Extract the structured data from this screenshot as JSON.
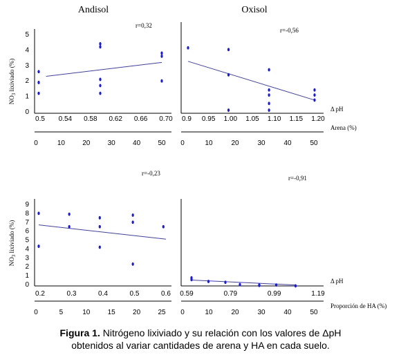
{
  "column_titles": [
    "Andisol",
    "Oxisol"
  ],
  "delta_ph_label": "Δ pH",
  "arena_label": "Arena (%)",
  "ha_label": "Proporción de HA (%)",
  "colors": {
    "points": "#1515ff",
    "trend": "#3a3ad0"
  },
  "caption": {
    "bold": "Figura 1.",
    "line1_rest": "Nitrógeno lixiviado y su relación con los valores de ΔpH",
    "line2": "obtenidos al variar cantidades de arena y HA en cada suelo."
  },
  "chart_data": [
    {
      "type": "scatter",
      "panel": "andisol-arena",
      "title": "Andisol",
      "r_label": "r=0,32",
      "ylabel": "NO3 lixiviado (%)",
      "xlabel": "Arena (%)",
      "ylim": [
        0,
        5
      ],
      "yticks": [
        "0",
        "1",
        "2",
        "3",
        "4",
        "5"
      ],
      "xlim_ph": [
        0.5,
        0.7
      ],
      "xticks_ph": [
        "0.5",
        "0.54",
        "0.58",
        "0.62",
        "0.66",
        "0.70"
      ],
      "xlim_arena": [
        0,
        50
      ],
      "xticks_arena": [
        "0",
        "10",
        "20",
        "30",
        "40",
        "50"
      ],
      "points": [
        {
          "x": 0,
          "y": 2.6
        },
        {
          "x": 0,
          "y": 1.9
        },
        {
          "x": 0,
          "y": 1.2
        },
        {
          "x": 25,
          "y": 4.4
        },
        {
          "x": 25,
          "y": 4.2
        },
        {
          "x": 25,
          "y": 2.1
        },
        {
          "x": 25,
          "y": 1.7
        },
        {
          "x": 25,
          "y": 1.2
        },
        {
          "x": 50,
          "y": 3.8
        },
        {
          "x": 50,
          "y": 3.6
        },
        {
          "x": 50,
          "y": 2.0
        }
      ],
      "trend": [
        {
          "x": 3,
          "y": 2.3
        },
        {
          "x": 50,
          "y": 3.2
        }
      ]
    },
    {
      "type": "scatter",
      "panel": "oxisol-arena",
      "title": "Oxisol",
      "r_label": "r=-0,56",
      "ylim": [
        0,
        5
      ],
      "xlim_ph": [
        0.88,
        1.2
      ],
      "xticks_ph": [
        "0.9",
        "0.95",
        "1.00",
        "1.05",
        "1.10",
        "1.15",
        "1.20"
      ],
      "xlim_arena": [
        0,
        50
      ],
      "xticks_arena": [
        "0",
        "10",
        "20",
        "30",
        "40",
        "50"
      ],
      "points": [
        {
          "x": 0,
          "y": 3.8
        },
        {
          "x": 16,
          "y": 3.7
        },
        {
          "x": 16,
          "y": 2.2
        },
        {
          "x": 16,
          "y": 0.1
        },
        {
          "x": 32,
          "y": 2.5
        },
        {
          "x": 32,
          "y": 1.3
        },
        {
          "x": 32,
          "y": 1.0
        },
        {
          "x": 32,
          "y": 0.5
        },
        {
          "x": 32,
          "y": 0.1
        },
        {
          "x": 50,
          "y": 1.3
        },
        {
          "x": 50,
          "y": 1.0
        },
        {
          "x": 50,
          "y": 0.7
        }
      ],
      "trend": [
        {
          "x": 0,
          "y": 3.0
        },
        {
          "x": 50,
          "y": 0.7
        }
      ]
    },
    {
      "type": "scatter",
      "panel": "andisol-ha",
      "r_label": "r=-0,23",
      "ylabel": "NO3 lixiviado (%)",
      "xlabel": "Proporción de HA (%)",
      "ylim": [
        0,
        9
      ],
      "yticks": [
        "0",
        "1",
        "2",
        "3",
        "4",
        "5",
        "6",
        "7",
        "8",
        "9"
      ],
      "xlim_ph": [
        0.2,
        0.6
      ],
      "xticks_ph": [
        "0.2",
        "0.3",
        "0.4",
        "0.5",
        "0.6"
      ],
      "xlim_ha": [
        0,
        25
      ],
      "xticks_ha": [
        "0",
        "5",
        "10",
        "15",
        "20",
        "25"
      ],
      "points": [
        {
          "x": 0,
          "y": 8.0
        },
        {
          "x": 0,
          "y": 4.3
        },
        {
          "x": 6,
          "y": 7.9
        },
        {
          "x": 6,
          "y": 6.5
        },
        {
          "x": 12,
          "y": 7.5
        },
        {
          "x": 12,
          "y": 6.5
        },
        {
          "x": 12,
          "y": 4.2
        },
        {
          "x": 18.5,
          "y": 7.8
        },
        {
          "x": 18.5,
          "y": 7.0
        },
        {
          "x": 18.5,
          "y": 2.3
        },
        {
          "x": 24.5,
          "y": 6.5
        }
      ],
      "trend": [
        {
          "x": 0,
          "y": 6.7
        },
        {
          "x": 25,
          "y": 5.1
        }
      ]
    },
    {
      "type": "scatter",
      "panel": "oxisol-ha",
      "r_label": "r=-0,91",
      "ylim": [
        0,
        9
      ],
      "xlim_ph": [
        0.55,
        1.22
      ],
      "xticks_ph": [
        "0.59",
        "0.79",
        "0.99",
        "1.19"
      ],
      "xlim_ha": [
        0,
        50
      ],
      "xticks_ha": [
        "0",
        "10",
        "20",
        "30",
        "40",
        "50"
      ],
      "points": [
        {
          "x": 2,
          "y": 0.75
        },
        {
          "x": 2,
          "y": 0.55
        },
        {
          "x": 9,
          "y": 0.35
        },
        {
          "x": 16,
          "y": 0.25
        },
        {
          "x": 22,
          "y": 0.0
        },
        {
          "x": 30,
          "y": -0.05
        },
        {
          "x": 30,
          "y": -0.1
        },
        {
          "x": 37,
          "y": -0.05
        },
        {
          "x": 45,
          "y": -0.15
        }
      ],
      "trend": [
        {
          "x": 2,
          "y": 0.5
        },
        {
          "x": 45,
          "y": -0.05
        }
      ]
    }
  ]
}
